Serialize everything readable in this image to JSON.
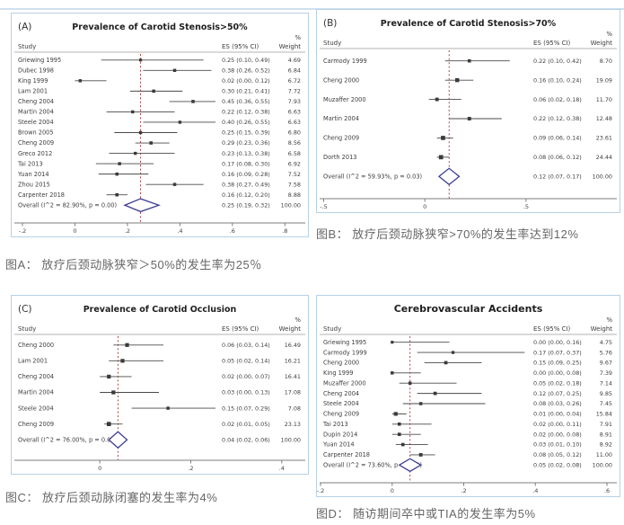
{
  "page": {
    "background": "#ffffff",
    "top_rule_color": "#cfe0ef",
    "panel_border_color": "#b7d0e6",
    "diamond_color": "#3d3d94",
    "null_line_color": "#a83232",
    "caption_color": "#666666"
  },
  "captions": {
    "a": "图A：  放疗后颈动脉狭窄＞50%的发生率为25％",
    "b": "图B： 放疗后颈动脉狭窄>70%的发生率达到12%",
    "c": "图C： 放疗后颈动脉闭塞的发生率为4%",
    "d": "图D：  随访期间卒中或TIA的发生率为5%"
  },
  "chart_data": [
    {
      "type": "forest",
      "panel": "A",
      "panel_label": "(A)",
      "title": "Prevalence of Carotid Stenosis>50%",
      "columns": {
        "study": "Study",
        "es": "ES (95% CI)",
        "weight_pct": "%",
        "weight": "Weight"
      },
      "xlim": [
        -0.2,
        0.84
      ],
      "xticks": [
        -0.2,
        0,
        0.2,
        0.4,
        0.6,
        0.8
      ],
      "xtick_labels": [
        "-.2",
        "0",
        ".2",
        ".4",
        ".6",
        ".8"
      ],
      "studies": [
        {
          "name": "Griewing 1995",
          "es": 0.25,
          "lo": 0.1,
          "hi": 0.49,
          "label": "0.25 (0.10, 0.49)",
          "weight": "4.69"
        },
        {
          "name": "Dubec 1998",
          "es": 0.38,
          "lo": 0.26,
          "hi": 0.52,
          "label": "0.38 (0.26, 0.52)",
          "weight": "6.84"
        },
        {
          "name": "King 1999",
          "es": 0.02,
          "lo": 0.0,
          "hi": 0.12,
          "label": "0.02 (0.00, 0.12)",
          "weight": "6.72"
        },
        {
          "name": "Lam 2001",
          "es": 0.3,
          "lo": 0.21,
          "hi": 0.41,
          "label": "0.30 (0.21, 0.41)",
          "weight": "7.72"
        },
        {
          "name": "Cheng 2004",
          "es": 0.45,
          "lo": 0.36,
          "hi": 0.55,
          "label": "0.45 (0.36, 0.55)",
          "weight": "7.93"
        },
        {
          "name": "Martin 2004",
          "es": 0.22,
          "lo": 0.12,
          "hi": 0.38,
          "label": "0.22 (0.12, 0.38)",
          "weight": "6.63"
        },
        {
          "name": "Steele 2004",
          "es": 0.4,
          "lo": 0.26,
          "hi": 0.55,
          "label": "0.40 (0.26, 0.55)",
          "weight": "6.63"
        },
        {
          "name": "Brown 2005",
          "es": 0.25,
          "lo": 0.15,
          "hi": 0.39,
          "label": "0.25 (0.15, 0.39)",
          "weight": "6.80"
        },
        {
          "name": "Cheng 2009",
          "es": 0.29,
          "lo": 0.23,
          "hi": 0.36,
          "label": "0.29 (0.23, 0.36)",
          "weight": "8.56"
        },
        {
          "name": "Greco 2012",
          "es": 0.23,
          "lo": 0.13,
          "hi": 0.38,
          "label": "0.23 (0.13, 0.38)",
          "weight": "6.58"
        },
        {
          "name": "Tai 2013",
          "es": 0.17,
          "lo": 0.08,
          "hi": 0.3,
          "label": "0.17 (0.08, 0.30)",
          "weight": "6.92"
        },
        {
          "name": "Yuan 2014",
          "es": 0.16,
          "lo": 0.09,
          "hi": 0.28,
          "label": "0.16 (0.09, 0.28)",
          "weight": "7.52"
        },
        {
          "name": "Zhou 2015",
          "es": 0.38,
          "lo": 0.27,
          "hi": 0.49,
          "label": "0.38 (0.27, 0.49)",
          "weight": "7.58"
        },
        {
          "name": "Carpenter 2018",
          "es": 0.16,
          "lo": 0.12,
          "hi": 0.2,
          "label": "0.16 (0.12, 0.20)",
          "weight": "8.88"
        }
      ],
      "overall": {
        "name": "Overall  (I^2 = 82.90%, p = 0.00)",
        "es": 0.25,
        "lo": 0.19,
        "hi": 0.32,
        "label": "0.25 (0.19, 0.32)",
        "weight": "100.00"
      }
    },
    {
      "type": "forest",
      "panel": "B",
      "panel_label": "(B)",
      "title": "Prevalence of Carotid Stenosis>70%",
      "columns": {
        "study": "Study",
        "es": "ES (95% CI)",
        "weight_pct": "%",
        "weight": "Weight"
      },
      "xlim": [
        -0.48,
        0.9
      ],
      "xticks": [
        -0.5,
        0,
        0.5
      ],
      "xtick_labels": [
        "-.5",
        "0",
        ".5"
      ],
      "studies": [
        {
          "name": "Carmody 1999",
          "es": 0.22,
          "lo": 0.1,
          "hi": 0.42,
          "label": "0.22 (0.10, 0.42)",
          "weight": "8.70"
        },
        {
          "name": "Cheng 2000",
          "es": 0.16,
          "lo": 0.1,
          "hi": 0.24,
          "label": "0.16 (0.10, 0.24)",
          "weight": "19.09"
        },
        {
          "name": "Muzaffer 2000",
          "es": 0.06,
          "lo": 0.02,
          "hi": 0.18,
          "label": "0.06 (0.02, 0.18)",
          "weight": "11.70"
        },
        {
          "name": "Martin 2004",
          "es": 0.22,
          "lo": 0.12,
          "hi": 0.38,
          "label": "0.22 (0.12, 0.38)",
          "weight": "12.48"
        },
        {
          "name": "Cheng 2009",
          "es": 0.09,
          "lo": 0.06,
          "hi": 0.14,
          "label": "0.09 (0.06, 0.14)",
          "weight": "23.61"
        },
        {
          "name": "Dorth 2013",
          "es": 0.08,
          "lo": 0.06,
          "hi": 0.12,
          "label": "0.08 (0.06, 0.12)",
          "weight": "24.44"
        }
      ],
      "overall": {
        "name": "Overall  (I^2 = 59.93%, p = 0.03)",
        "es": 0.12,
        "lo": 0.07,
        "hi": 0.17,
        "label": "0.12 (0.07, 0.17)",
        "weight": "100.00"
      }
    },
    {
      "type": "forest",
      "panel": "C",
      "panel_label": "(C)",
      "title": "Prevalence of Carotid Occlusion",
      "columns": {
        "study": "Study",
        "es": "ES (95% CI)",
        "weight_pct": "%",
        "weight": "Weight"
      },
      "xlim": [
        -0.17,
        0.43
      ],
      "xticks": [
        0,
        0.2,
        0.4
      ],
      "xtick_labels": [
        "0",
        ".2",
        ".4"
      ],
      "studies": [
        {
          "name": "Cheng 2000",
          "es": 0.06,
          "lo": 0.03,
          "hi": 0.14,
          "label": "0.06 (0.03, 0.14)",
          "weight": "16.49"
        },
        {
          "name": "Lam 2001",
          "es": 0.05,
          "lo": 0.02,
          "hi": 0.14,
          "label": "0.05 (0.02, 0.14)",
          "weight": "16.21"
        },
        {
          "name": "Cheng 2004",
          "es": 0.02,
          "lo": 0.0,
          "hi": 0.07,
          "label": "0.02 (0.00, 0.07)",
          "weight": "16.41"
        },
        {
          "name": "Martin 2004",
          "es": 0.03,
          "lo": 0.0,
          "hi": 0.13,
          "label": "0.03 (0.00, 0.13)",
          "weight": "17.08"
        },
        {
          "name": "Steele 2004",
          "es": 0.15,
          "lo": 0.07,
          "hi": 0.29,
          "label": "0.15 (0.07, 0.29)",
          "weight": "7.08"
        },
        {
          "name": "Cheng 2009",
          "es": 0.02,
          "lo": 0.01,
          "hi": 0.05,
          "label": "0.02 (0.01, 0.05)",
          "weight": "23.13"
        }
      ],
      "overall": {
        "name": "Overall  (I^2 = 76.00%, p = 0.00)",
        "es": 0.04,
        "lo": 0.02,
        "hi": 0.06,
        "label": "0.04 (0.02, 0.06)",
        "weight": "100.00"
      }
    },
    {
      "type": "forest",
      "panel": "D",
      "panel_label": "",
      "title": "Cerebrovascular Accidents",
      "columns": {
        "study": "Study",
        "es": "ES (95% CI)",
        "weight_pct": "%",
        "weight": "Weight"
      },
      "xlim": [
        -0.18,
        0.6
      ],
      "xticks": [
        -0.2,
        0,
        0.2,
        0.4,
        0.6
      ],
      "xtick_labels": [
        "-.2",
        "0",
        ".2",
        ".4",
        ".6"
      ],
      "studies": [
        {
          "name": "Griewing 1995",
          "es": 0.0,
          "lo": 0.0,
          "hi": 0.16,
          "label": "0.00 (0.00, 0.16)",
          "weight": "4.75"
        },
        {
          "name": "Carmody 1999",
          "es": 0.17,
          "lo": 0.07,
          "hi": 0.37,
          "label": "0.17 (0.07, 0.37)",
          "weight": "5.76"
        },
        {
          "name": "Cheng 2000",
          "es": 0.15,
          "lo": 0.09,
          "hi": 0.25,
          "label": "0.15 (0.09, 0.25)",
          "weight": "9.67"
        },
        {
          "name": "King 1999",
          "es": 0.0,
          "lo": 0.0,
          "hi": 0.08,
          "label": "0.00 (0.00, 0.08)",
          "weight": "7.39"
        },
        {
          "name": "Muzaffer 2000",
          "es": 0.05,
          "lo": 0.02,
          "hi": 0.18,
          "label": "0.05 (0.02, 0.18)",
          "weight": "7.14"
        },
        {
          "name": "Cheng 2004",
          "es": 0.12,
          "lo": 0.07,
          "hi": 0.25,
          "label": "0.12 (0.07, 0.25)",
          "weight": "9.85"
        },
        {
          "name": "Steele 2004",
          "es": 0.08,
          "lo": 0.03,
          "hi": 0.26,
          "label": "0.08 (0.03, 0.26)",
          "weight": "7.45"
        },
        {
          "name": "Cheng 2009",
          "es": 0.01,
          "lo": 0.0,
          "hi": 0.04,
          "label": "0.01 (0.00, 0.04)",
          "weight": "15.84"
        },
        {
          "name": "Tai 2013",
          "es": 0.02,
          "lo": 0.0,
          "hi": 0.11,
          "label": "0.02 (0.00, 0.11)",
          "weight": "7.91"
        },
        {
          "name": "Dupin 2014",
          "es": 0.02,
          "lo": 0.0,
          "hi": 0.08,
          "label": "0.02 (0.00, 0.08)",
          "weight": "8.91"
        },
        {
          "name": "Yuan 2014",
          "es": 0.03,
          "lo": 0.01,
          "hi": 0.1,
          "label": "0.03 (0.01, 0.10)",
          "weight": "8.92"
        },
        {
          "name": "Carpenter 2018",
          "es": 0.08,
          "lo": 0.05,
          "hi": 0.12,
          "label": "0.08 (0.05, 0.12)",
          "weight": "11.00"
        }
      ],
      "overall": {
        "name": "Overall  (I^2 = 73.60%, p = 0.00)",
        "es": 0.05,
        "lo": 0.02,
        "hi": 0.08,
        "label": "0.05 (0.02, 0.08)",
        "weight": "100.00"
      }
    }
  ]
}
